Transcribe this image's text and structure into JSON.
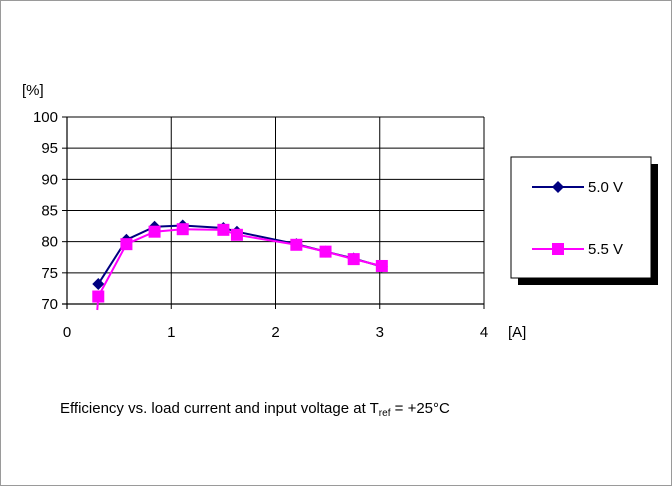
{
  "chart_data": {
    "type": "line",
    "ylabel": "[%]",
    "xlabel": "[A]",
    "xlim": [
      0,
      4
    ],
    "ylim": [
      70,
      100
    ],
    "x_ticks": [
      "0",
      "1",
      "2",
      "3",
      "4"
    ],
    "y_ticks": [
      "70",
      "75",
      "80",
      "85",
      "90",
      "95",
      "100"
    ],
    "grid": true,
    "legend_position": "right",
    "series": [
      {
        "name": "5.0 V",
        "color": "#000080",
        "marker": "diamond",
        "x": [
          0.3,
          0.57,
          0.84,
          1.11,
          1.5,
          1.63,
          2.2,
          2.48,
          2.75,
          3.02
        ],
        "y": [
          73.2,
          80.3,
          82.4,
          82.6,
          82.2,
          81.6,
          79.6,
          78.4,
          77.3,
          76.0
        ]
      },
      {
        "name": "5.5 V",
        "color": "#ff00ff",
        "marker": "square",
        "x": [
          0.3,
          0.57,
          0.84,
          1.11,
          1.5,
          1.63,
          2.2,
          2.48,
          2.75,
          3.02
        ],
        "y": [
          71.2,
          79.6,
          81.6,
          82.0,
          81.9,
          81.1,
          79.5,
          78.4,
          77.2,
          76.1
        ]
      }
    ]
  },
  "caption": {
    "prefix": "Efficiency vs. load current and input voltage at T",
    "subscript": "ref",
    "suffix": " = +25°C"
  }
}
